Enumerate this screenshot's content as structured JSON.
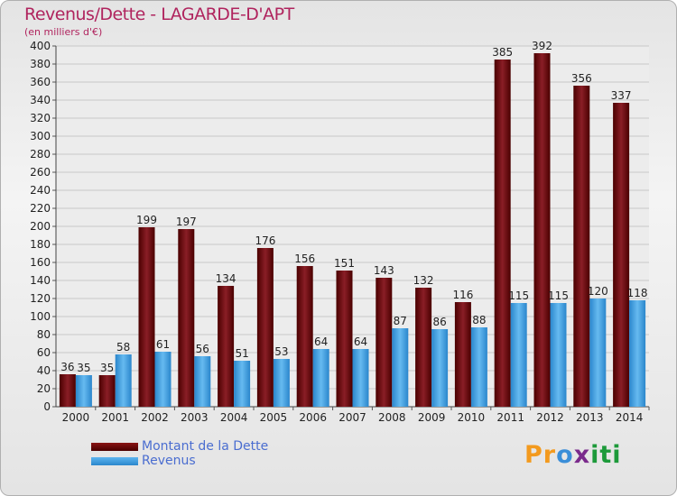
{
  "chart_data": {
    "type": "bar",
    "title": "Revenus/Dette - LAGARDE-D'APT",
    "subtitle": "(en milliers d'€)",
    "categories": [
      "2000",
      "2001",
      "2002",
      "2003",
      "2004",
      "2005",
      "2006",
      "2007",
      "2008",
      "2009",
      "2010",
      "2011",
      "2012",
      "2013",
      "2014"
    ],
    "series": [
      {
        "name": "Montant de la Dette",
        "values": [
          36,
          35,
          199,
          197,
          134,
          176,
          156,
          151,
          143,
          132,
          116,
          385,
          392,
          356,
          337
        ]
      },
      {
        "name": "Revenus",
        "values": [
          35,
          58,
          61,
          56,
          51,
          53,
          64,
          64,
          87,
          86,
          88,
          115,
          115,
          120,
          118
        ]
      }
    ],
    "ylim": [
      0,
      400
    ],
    "ytick_step": 20,
    "grid": true,
    "legend": "bottom-left"
  },
  "colors": {
    "debt_top": "#8a1e26",
    "debt_bottom": "#4a0000",
    "rev_top": "#66baf0",
    "rev_bottom": "#2a86cc",
    "title": "#b0245e",
    "legend_text": "#4a6dd0"
  },
  "logo": {
    "letters": [
      "P",
      "r",
      "o",
      "x",
      "i",
      "t",
      "i"
    ],
    "colors": [
      "#f39a1e",
      "#f39a1e",
      "#3a8ed8",
      "#7a2a8c",
      "#1d9a3a",
      "#1d9a3a",
      "#1d9a3a"
    ]
  }
}
